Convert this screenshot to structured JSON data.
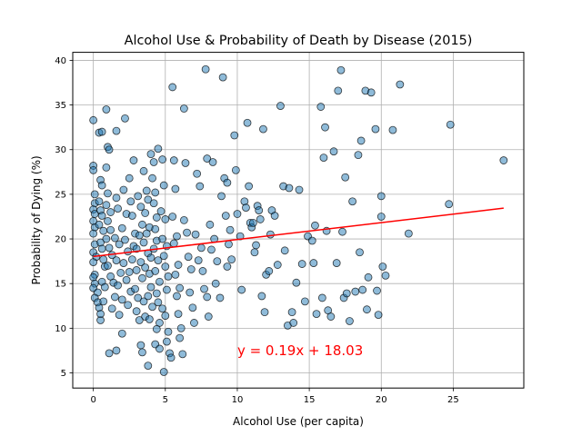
{
  "chart_data": {
    "type": "scatter",
    "title": "Alcohol Use & Probability of Death by Disease (2015)",
    "xlabel": "Alcohol Use (per capita)",
    "ylabel": "Probability of Dying (%)",
    "xlim": [
      -1.43,
      29.9
    ],
    "ylim": [
      3.3,
      40.9
    ],
    "grid": true,
    "xticks": [
      0,
      5,
      10,
      15,
      20,
      25
    ],
    "yticks": [
      5,
      10,
      15,
      20,
      25,
      30,
      35,
      40
    ],
    "marker_color": "#1f77b4",
    "marker_edge_color": "#000000",
    "marker_alpha": 0.5,
    "regression": {
      "slope": 0.19,
      "intercept": 18.03,
      "x_range": [
        0.0,
        28.5
      ],
      "color": "#ff0000",
      "label": "y = 0.19x + 18.03",
      "label_anchor": [
        10,
        7
      ]
    },
    "points": [
      [
        0.0,
        33.3
      ],
      [
        0.0,
        28.2
      ],
      [
        0.0,
        27.7
      ],
      [
        0.1,
        25.0
      ],
      [
        0.1,
        24.0
      ],
      [
        0.0,
        23.3
      ],
      [
        0.1,
        22.8
      ],
      [
        0.0,
        22.0
      ],
      [
        0.1,
        21.3
      ],
      [
        0.0,
        20.6
      ],
      [
        0.1,
        19.4
      ],
      [
        0.0,
        18.5
      ],
      [
        0.2,
        18.0
      ],
      [
        0.0,
        17.4
      ],
      [
        0.1,
        16.0
      ],
      [
        0.0,
        15.7
      ],
      [
        0.1,
        15.0
      ],
      [
        0.0,
        14.5
      ],
      [
        0.3,
        14.0
      ],
      [
        0.1,
        13.4
      ],
      [
        0.3,
        12.9
      ],
      [
        0.4,
        12.3
      ],
      [
        0.5,
        10.9
      ],
      [
        0.5,
        11.6
      ],
      [
        0.4,
        31.9
      ],
      [
        0.6,
        32.0
      ],
      [
        0.5,
        26.6
      ],
      [
        0.6,
        26.0
      ],
      [
        0.4,
        24.2
      ],
      [
        0.5,
        23.2
      ],
      [
        0.6,
        22.6
      ],
      [
        0.4,
        21.6
      ],
      [
        0.7,
        20.9
      ],
      [
        0.5,
        19.6
      ],
      [
        0.6,
        18.9
      ],
      [
        0.7,
        17.7
      ],
      [
        0.8,
        16.9
      ],
      [
        0.6,
        15.2
      ],
      [
        0.8,
        14.6
      ],
      [
        0.7,
        13.0
      ],
      [
        0.9,
        34.5
      ],
      [
        1.0,
        30.3
      ],
      [
        1.1,
        30.0
      ],
      [
        0.9,
        28.0
      ],
      [
        1.0,
        25.1
      ],
      [
        0.9,
        23.8
      ],
      [
        1.2,
        23.0
      ],
      [
        1.0,
        22.0
      ],
      [
        1.2,
        21.0
      ],
      [
        0.9,
        20.0
      ],
      [
        1.1,
        19.0
      ],
      [
        1.3,
        18.2
      ],
      [
        1.0,
        17.0
      ],
      [
        1.2,
        15.8
      ],
      [
        1.4,
        15.1
      ],
      [
        1.5,
        13.5
      ],
      [
        1.3,
        12.2
      ],
      [
        1.1,
        7.2
      ],
      [
        1.6,
        24.6
      ],
      [
        1.7,
        23.4
      ],
      [
        1.5,
        20.1
      ],
      [
        1.8,
        19.4
      ],
      [
        1.6,
        17.6
      ],
      [
        1.9,
        16.2
      ],
      [
        1.7,
        14.8
      ],
      [
        2.0,
        13.2
      ],
      [
        1.8,
        11.5
      ],
      [
        2.0,
        9.4
      ],
      [
        1.6,
        7.5
      ],
      [
        1.6,
        32.1
      ],
      [
        2.2,
        33.5
      ],
      [
        2.1,
        25.5
      ],
      [
        2.3,
        22.8
      ],
      [
        2.0,
        21.2
      ],
      [
        2.2,
        19.9
      ],
      [
        2.4,
        18.6
      ],
      [
        2.1,
        17.3
      ],
      [
        2.5,
        16.3
      ],
      [
        2.3,
        15.4
      ],
      [
        2.6,
        14.1
      ],
      [
        2.4,
        12.6
      ],
      [
        2.5,
        26.8
      ],
      [
        2.6,
        24.2
      ],
      [
        2.7,
        22.6
      ],
      [
        2.8,
        28.8
      ],
      [
        2.9,
        20.6
      ],
      [
        2.8,
        19.2
      ],
      [
        3.0,
        18.9
      ],
      [
        2.7,
        17.7
      ],
      [
        3.0,
        16.5
      ],
      [
        2.9,
        14.4
      ],
      [
        3.1,
        13.4
      ],
      [
        3.0,
        11.9
      ],
      [
        3.2,
        10.9
      ],
      [
        3.1,
        24.8
      ],
      [
        3.3,
        23.6
      ],
      [
        3.4,
        21.6
      ],
      [
        3.2,
        20.4
      ],
      [
        3.5,
        19.6
      ],
      [
        3.3,
        17.4
      ],
      [
        3.6,
        16.8
      ],
      [
        3.4,
        15.6
      ],
      [
        3.5,
        13.0
      ],
      [
        3.6,
        11.3
      ],
      [
        3.3,
        8.1
      ],
      [
        3.4,
        7.3
      ],
      [
        3.5,
        27.6
      ],
      [
        3.7,
        25.4
      ],
      [
        3.8,
        24.4
      ],
      [
        3.6,
        22.9
      ],
      [
        3.9,
        21.3
      ],
      [
        3.7,
        20.6
      ],
      [
        3.8,
        18.4
      ],
      [
        4.0,
        17.9
      ],
      [
        3.9,
        16.1
      ],
      [
        4.0,
        14.6
      ],
      [
        3.8,
        13.6
      ],
      [
        4.1,
        12.4
      ],
      [
        3.9,
        11.0
      ],
      [
        3.8,
        5.8
      ],
      [
        4.0,
        29.5
      ],
      [
        4.2,
        28.6
      ],
      [
        4.1,
        26.8
      ],
      [
        4.3,
        25.2
      ],
      [
        4.2,
        24.0
      ],
      [
        4.4,
        22.4
      ],
      [
        4.3,
        21.1
      ],
      [
        4.4,
        19.8
      ],
      [
        4.2,
        18.9
      ],
      [
        4.5,
        17.6
      ],
      [
        4.3,
        16.4
      ],
      [
        4.6,
        15.2
      ],
      [
        4.4,
        13.9
      ],
      [
        4.5,
        12.9
      ],
      [
        4.6,
        10.6
      ],
      [
        4.4,
        9.9
      ],
      [
        4.3,
        8.2
      ],
      [
        4.6,
        7.7
      ],
      [
        4.5,
        30.1
      ],
      [
        4.8,
        28.9
      ],
      [
        4.9,
        26.0
      ],
      [
        4.7,
        23.1
      ],
      [
        5.0,
        22.2
      ],
      [
        4.8,
        20.0
      ],
      [
        5.1,
        19.2
      ],
      [
        4.9,
        18.1
      ],
      [
        5.0,
        16.9
      ],
      [
        5.2,
        15.8
      ],
      [
        5.1,
        14.3
      ],
      [
        4.8,
        12.2
      ],
      [
        5.0,
        11.4
      ],
      [
        5.2,
        9.6
      ],
      [
        4.9,
        5.1
      ],
      [
        5.1,
        8.5
      ],
      [
        5.3,
        7.2
      ],
      [
        5.4,
        6.7
      ],
      [
        5.5,
        37.0
      ],
      [
        5.6,
        28.8
      ],
      [
        5.7,
        25.6
      ],
      [
        5.5,
        22.5
      ],
      [
        5.8,
        20.3
      ],
      [
        5.6,
        19.5
      ],
      [
        5.9,
        17.1
      ],
      [
        5.7,
        16.0
      ],
      [
        6.0,
        14.5
      ],
      [
        5.8,
        13.6
      ],
      [
        5.9,
        11.6
      ],
      [
        6.1,
        10.0
      ],
      [
        6.0,
        8.9
      ],
      [
        6.2,
        7.1
      ],
      [
        6.3,
        34.6
      ],
      [
        6.4,
        28.5
      ],
      [
        6.3,
        22.1
      ],
      [
        6.5,
        20.7
      ],
      [
        6.6,
        18.0
      ],
      [
        6.8,
        16.6
      ],
      [
        6.7,
        14.0
      ],
      [
        6.9,
        12.3
      ],
      [
        7.0,
        10.6
      ],
      [
        7.2,
        27.3
      ],
      [
        7.4,
        25.9
      ],
      [
        7.1,
        20.5
      ],
      [
        7.5,
        19.0
      ],
      [
        7.3,
        17.6
      ],
      [
        7.6,
        16.4
      ],
      [
        7.7,
        14.4
      ],
      [
        7.9,
        13.5
      ],
      [
        8.0,
        11.3
      ],
      [
        7.8,
        39.0
      ],
      [
        7.9,
        29.0
      ],
      [
        8.3,
        28.6
      ],
      [
        8.1,
        21.6
      ],
      [
        8.4,
        20.0
      ],
      [
        8.2,
        18.8
      ],
      [
        8.6,
        17.5
      ],
      [
        8.5,
        15.0
      ],
      [
        8.8,
        13.4
      ],
      [
        8.9,
        24.8
      ],
      [
        9.0,
        38.1
      ],
      [
        9.1,
        26.8
      ],
      [
        9.3,
        26.3
      ],
      [
        9.2,
        22.6
      ],
      [
        9.5,
        21.0
      ],
      [
        9.4,
        19.4
      ],
      [
        9.6,
        17.7
      ],
      [
        9.3,
        16.9
      ],
      [
        9.8,
        31.6
      ],
      [
        9.9,
        27.7
      ],
      [
        10.0,
        22.8
      ],
      [
        10.2,
        20.3
      ],
      [
        10.3,
        14.3
      ],
      [
        10.5,
        24.2
      ],
      [
        10.7,
        33.0
      ],
      [
        10.6,
        23.5
      ],
      [
        10.8,
        25.9
      ],
      [
        10.9,
        21.8
      ],
      [
        11.0,
        21.3
      ],
      [
        11.1,
        21.8
      ],
      [
        11.2,
        18.5
      ],
      [
        11.3,
        19.3
      ],
      [
        11.4,
        23.7
      ],
      [
        11.5,
        23.2
      ],
      [
        11.6,
        22.2
      ],
      [
        11.7,
        13.6
      ],
      [
        11.8,
        32.3
      ],
      [
        11.9,
        11.8
      ],
      [
        12.0,
        16.0
      ],
      [
        12.2,
        16.4
      ],
      [
        12.3,
        20.5
      ],
      [
        12.4,
        23.2
      ],
      [
        12.6,
        22.6
      ],
      [
        12.8,
        17.1
      ],
      [
        13.0,
        34.9
      ],
      [
        13.2,
        25.9
      ],
      [
        13.3,
        18.7
      ],
      [
        13.5,
        10.3
      ],
      [
        13.6,
        25.7
      ],
      [
        13.8,
        11.8
      ],
      [
        13.9,
        10.6
      ],
      [
        14.1,
        15.1
      ],
      [
        14.3,
        25.5
      ],
      [
        14.5,
        17.2
      ],
      [
        14.7,
        13.0
      ],
      [
        14.9,
        20.3
      ],
      [
        15.2,
        19.8
      ],
      [
        15.4,
        21.5
      ],
      [
        15.3,
        17.3
      ],
      [
        15.5,
        11.6
      ],
      [
        15.8,
        34.8
      ],
      [
        15.9,
        13.4
      ],
      [
        16.0,
        29.1
      ],
      [
        16.1,
        32.5
      ],
      [
        16.2,
        20.9
      ],
      [
        16.3,
        12.0
      ],
      [
        16.5,
        11.3
      ],
      [
        16.7,
        29.8
      ],
      [
        16.9,
        17.3
      ],
      [
        17.0,
        36.6
      ],
      [
        17.2,
        38.9
      ],
      [
        17.3,
        20.8
      ],
      [
        17.4,
        13.4
      ],
      [
        17.5,
        26.9
      ],
      [
        17.6,
        13.9
      ],
      [
        17.8,
        10.8
      ],
      [
        18.0,
        24.2
      ],
      [
        18.2,
        14.1
      ],
      [
        18.4,
        29.4
      ],
      [
        18.5,
        18.5
      ],
      [
        18.6,
        31.0
      ],
      [
        18.7,
        14.3
      ],
      [
        18.9,
        36.6
      ],
      [
        19.0,
        12.1
      ],
      [
        19.1,
        15.7
      ],
      [
        19.3,
        36.4
      ],
      [
        19.6,
        32.3
      ],
      [
        19.8,
        11.5
      ],
      [
        20.0,
        22.5
      ],
      [
        19.7,
        14.2
      ],
      [
        20.1,
        16.9
      ],
      [
        20.0,
        24.8
      ],
      [
        20.3,
        15.9
      ],
      [
        20.8,
        32.2
      ],
      [
        21.3,
        37.3
      ],
      [
        21.9,
        20.6
      ],
      [
        24.7,
        23.9
      ],
      [
        24.8,
        32.8
      ],
      [
        28.5,
        28.8
      ]
    ]
  }
}
